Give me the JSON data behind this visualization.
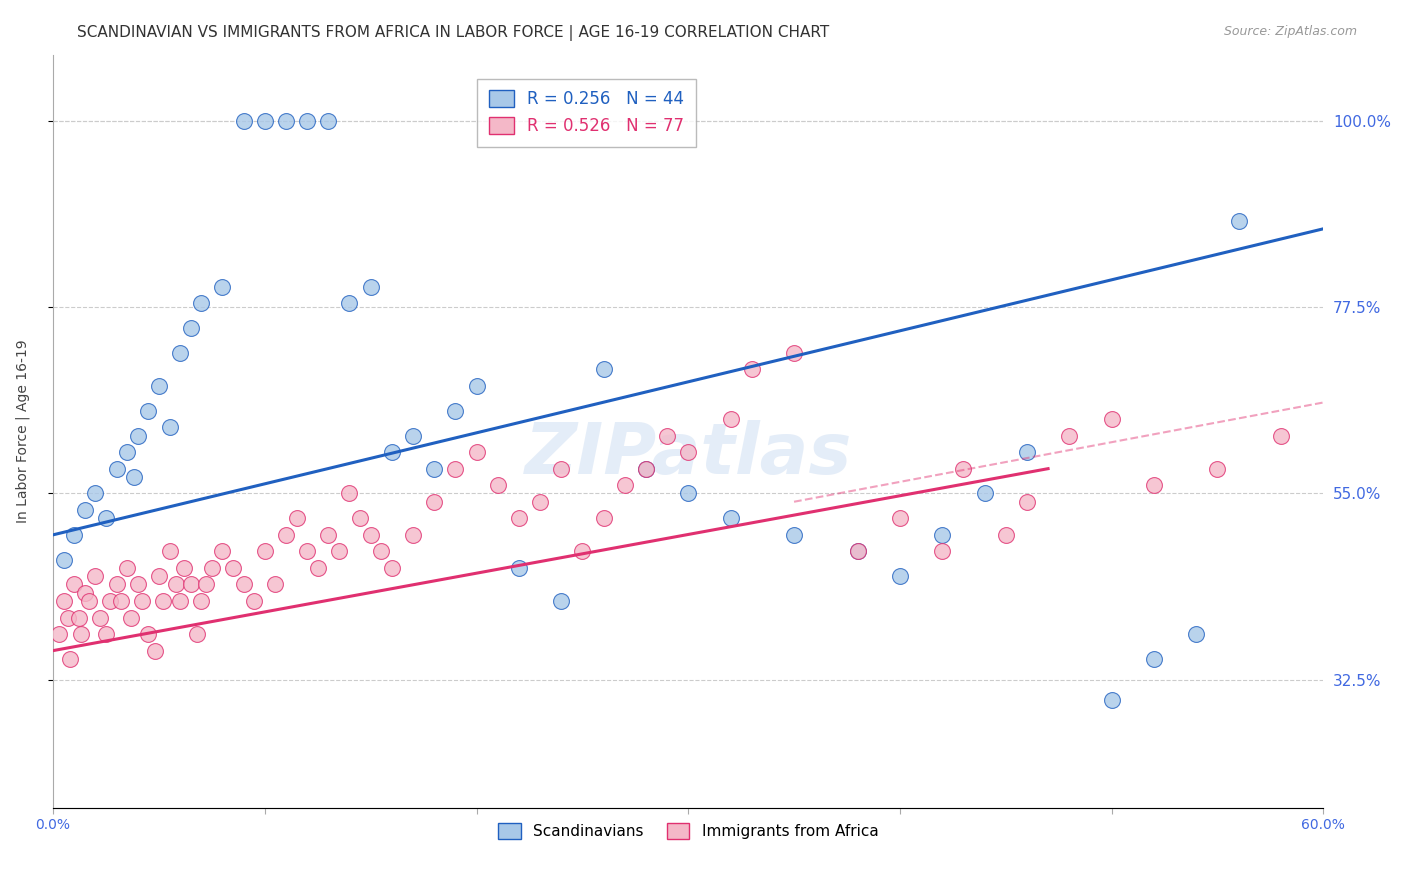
{
  "title": "SCANDINAVIAN VS IMMIGRANTS FROM AFRICA IN LABOR FORCE | AGE 16-19 CORRELATION CHART",
  "source": "Source: ZipAtlas.com",
  "ylabel": "In Labor Force | Age 16-19",
  "xlim": [
    0.0,
    60.0
  ],
  "ylim": [
    17.0,
    108.0
  ],
  "yticks": [
    32.5,
    55.0,
    77.5,
    100.0
  ],
  "ytick_top": 100.0,
  "ytick_labels": [
    "32.5%",
    "55.0%",
    "77.5%",
    "100.0%"
  ],
  "xticks": [
    0.0,
    10.0,
    20.0,
    30.0,
    40.0,
    50.0,
    60.0
  ],
  "xtick_labels": [
    "0.0%",
    "",
    "",
    "",
    "",
    "",
    "60.0%"
  ],
  "blue_color": "#a8c8e8",
  "pink_color": "#f4b8c8",
  "blue_line_color": "#2060c0",
  "pink_line_color": "#e03070",
  "legend_blue_label": "R = 0.256   N = 44",
  "legend_pink_label": "R = 0.526   N = 77",
  "scandinavian_legend": "Scandinavians",
  "africa_legend": "Immigrants from Africa",
  "blue_scatter_x": [
    0.5,
    1.0,
    1.5,
    2.0,
    2.5,
    3.0,
    3.5,
    3.8,
    4.0,
    4.5,
    5.0,
    5.5,
    6.0,
    6.5,
    7.0,
    8.0,
    9.0,
    10.0,
    11.0,
    12.0,
    13.0,
    14.0,
    15.0,
    16.0,
    17.0,
    18.0,
    19.0,
    20.0,
    22.0,
    24.0,
    26.0,
    28.0,
    30.0,
    32.0,
    35.0,
    38.0,
    40.0,
    42.0,
    44.0,
    46.0,
    50.0,
    52.0,
    54.0,
    56.0
  ],
  "blue_scatter_y": [
    47.0,
    50.0,
    53.0,
    55.0,
    52.0,
    58.0,
    60.0,
    57.0,
    62.0,
    65.0,
    68.0,
    63.0,
    72.0,
    75.0,
    78.0,
    80.0,
    100.0,
    100.0,
    100.0,
    100.0,
    100.0,
    78.0,
    80.0,
    60.0,
    62.0,
    58.0,
    65.0,
    68.0,
    46.0,
    42.0,
    70.0,
    58.0,
    55.0,
    52.0,
    50.0,
    48.0,
    45.0,
    50.0,
    55.0,
    60.0,
    30.0,
    35.0,
    38.0,
    88.0
  ],
  "pink_scatter_x": [
    0.3,
    0.5,
    0.7,
    0.8,
    1.0,
    1.2,
    1.3,
    1.5,
    1.7,
    2.0,
    2.2,
    2.5,
    2.7,
    3.0,
    3.2,
    3.5,
    3.7,
    4.0,
    4.2,
    4.5,
    4.8,
    5.0,
    5.2,
    5.5,
    5.8,
    6.0,
    6.2,
    6.5,
    6.8,
    7.0,
    7.2,
    7.5,
    8.0,
    8.5,
    9.0,
    9.5,
    10.0,
    10.5,
    11.0,
    11.5,
    12.0,
    12.5,
    13.0,
    13.5,
    14.0,
    14.5,
    15.0,
    15.5,
    16.0,
    17.0,
    18.0,
    19.0,
    20.0,
    21.0,
    22.0,
    23.0,
    24.0,
    25.0,
    26.0,
    27.0,
    28.0,
    29.0,
    30.0,
    32.0,
    33.0,
    35.0,
    38.0,
    40.0,
    42.0,
    43.0,
    45.0,
    46.0,
    48.0,
    50.0,
    52.0,
    55.0,
    58.0
  ],
  "pink_scatter_y": [
    38.0,
    42.0,
    40.0,
    35.0,
    44.0,
    40.0,
    38.0,
    43.0,
    42.0,
    45.0,
    40.0,
    38.0,
    42.0,
    44.0,
    42.0,
    46.0,
    40.0,
    44.0,
    42.0,
    38.0,
    36.0,
    45.0,
    42.0,
    48.0,
    44.0,
    42.0,
    46.0,
    44.0,
    38.0,
    42.0,
    44.0,
    46.0,
    48.0,
    46.0,
    44.0,
    42.0,
    48.0,
    44.0,
    50.0,
    52.0,
    48.0,
    46.0,
    50.0,
    48.0,
    55.0,
    52.0,
    50.0,
    48.0,
    46.0,
    50.0,
    54.0,
    58.0,
    60.0,
    56.0,
    52.0,
    54.0,
    58.0,
    48.0,
    52.0,
    56.0,
    58.0,
    62.0,
    60.0,
    64.0,
    70.0,
    72.0,
    48.0,
    52.0,
    48.0,
    58.0,
    50.0,
    54.0,
    62.0,
    64.0,
    56.0,
    58.0,
    62.0
  ],
  "blue_line": {
    "x0": 0.0,
    "x1": 60.0,
    "y0": 50.0,
    "y1": 87.0
  },
  "pink_line_solid": {
    "x0": 0.0,
    "x1": 47.0,
    "y0": 36.0,
    "y1": 58.0
  },
  "pink_line_dash": {
    "x0": 35.0,
    "x1": 60.0,
    "y0": 54.0,
    "y1": 66.0
  },
  "watermark": "ZIPatlas",
  "background_color": "#ffffff",
  "grid_color": "#cccccc",
  "axis_label_color": "#4169e1",
  "title_color": "#333333"
}
